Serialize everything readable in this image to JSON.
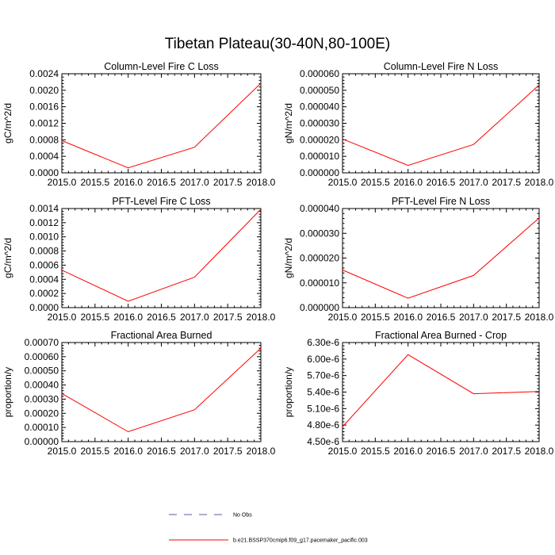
{
  "figure_title": "Tibetan Plateau(30-40N,80-100E)",
  "legend": {
    "entries": [
      {
        "label": "No Obs",
        "style": "dashed",
        "color": "#5a5aa0"
      },
      {
        "label": "b.e21.BSSP370cmip6.f09_g17.pacemaker_pacific.003",
        "style": "solid",
        "color": "#ff0000"
      }
    ]
  },
  "series_color": "#ff0000",
  "chart_data": [
    {
      "type": "line",
      "title": "Column-Level Fire C Loss",
      "ylabel": "gC/m^2/d",
      "xlim": [
        2015.0,
        2018.0
      ],
      "ylim": [
        0.0,
        0.0024
      ],
      "xticks": [
        "2015.0",
        "2015.5",
        "2016.0",
        "2016.5",
        "2017.0",
        "2017.5",
        "2018.0"
      ],
      "yticks": [
        {
          "value": 0.0,
          "label": "0.0000"
        },
        {
          "value": 0.0004,
          "label": "0.0004"
        },
        {
          "value": 0.0008,
          "label": "0.0008"
        },
        {
          "value": 0.0012,
          "label": "0.0012"
        },
        {
          "value": 0.0016,
          "label": "0.0016"
        },
        {
          "value": 0.002,
          "label": "0.0020"
        },
        {
          "value": 0.0024,
          "label": "0.0024"
        }
      ],
      "series": [
        {
          "name": "b.e21.BSSP370cmip6.f09_g17.pacemaker_pacific.003",
          "x": [
            2015,
            2016,
            2017,
            2018
          ],
          "values": [
            0.00078,
            0.00012,
            0.00062,
            0.00217
          ]
        }
      ]
    },
    {
      "type": "line",
      "title": "Column-Level Fire N Loss",
      "ylabel": "gN/m^2/d",
      "xlim": [
        2015.0,
        2018.0
      ],
      "ylim": [
        0.0,
        6e-05
      ],
      "xticks": [
        "2015.0",
        "2015.5",
        "2016.0",
        "2016.5",
        "2017.0",
        "2017.5",
        "2018.0"
      ],
      "yticks": [
        {
          "value": 0.0,
          "label": "0.000000"
        },
        {
          "value": 1e-05,
          "label": "0.000010"
        },
        {
          "value": 2e-05,
          "label": "0.000020"
        },
        {
          "value": 3e-05,
          "label": "0.000030"
        },
        {
          "value": 4e-05,
          "label": "0.000040"
        },
        {
          "value": 5e-05,
          "label": "0.000050"
        },
        {
          "value": 6e-05,
          "label": "0.000060"
        }
      ],
      "series": [
        {
          "name": "b.e21.BSSP370cmip6.f09_g17.pacemaker_pacific.003",
          "x": [
            2015,
            2016,
            2017,
            2018
          ],
          "values": [
            2.05e-05,
            4.5e-06,
            1.72e-05,
            5.32e-05
          ]
        }
      ]
    },
    {
      "type": "line",
      "title": "PFT-Level Fire C Loss",
      "ylabel": "gC/m^2/d",
      "xlim": [
        2015.0,
        2018.0
      ],
      "ylim": [
        0.0,
        0.0014
      ],
      "xticks": [
        "2015.0",
        "2015.5",
        "2016.0",
        "2016.5",
        "2017.0",
        "2017.5",
        "2018.0"
      ],
      "yticks": [
        {
          "value": 0.0,
          "label": "0.0000"
        },
        {
          "value": 0.0002,
          "label": "0.0002"
        },
        {
          "value": 0.0004,
          "label": "0.0004"
        },
        {
          "value": 0.0006,
          "label": "0.0006"
        },
        {
          "value": 0.0008,
          "label": "0.0008"
        },
        {
          "value": 0.001,
          "label": "0.0010"
        },
        {
          "value": 0.0012,
          "label": "0.0012"
        },
        {
          "value": 0.0014,
          "label": "0.0014"
        }
      ],
      "series": [
        {
          "name": "b.e21.BSSP370cmip6.f09_g17.pacemaker_pacific.003",
          "x": [
            2015,
            2016,
            2017,
            2018
          ],
          "values": [
            0.00053,
            9e-05,
            0.00043,
            0.00139
          ]
        }
      ]
    },
    {
      "type": "line",
      "title": "PFT-Level Fire N Loss",
      "ylabel": "gN/m^2/d",
      "xlim": [
        2015.0,
        2018.0
      ],
      "ylim": [
        0.0,
        4e-05
      ],
      "xticks": [
        "2015.0",
        "2015.5",
        "2016.0",
        "2016.5",
        "2017.0",
        "2017.5",
        "2018.0"
      ],
      "yticks": [
        {
          "value": 0.0,
          "label": "0.000000"
        },
        {
          "value": 1e-05,
          "label": "0.000010"
        },
        {
          "value": 2e-05,
          "label": "0.000020"
        },
        {
          "value": 3e-05,
          "label": "0.000030"
        },
        {
          "value": 4e-05,
          "label": "0.000040"
        }
      ],
      "series": [
        {
          "name": "b.e21.BSSP370cmip6.f09_g17.pacemaker_pacific.003",
          "x": [
            2015,
            2016,
            2017,
            2018
          ],
          "values": [
            1.52e-05,
            3.8e-06,
            1.3e-05,
            3.62e-05
          ]
        }
      ]
    },
    {
      "type": "line",
      "title": "Fractional Area Burned",
      "ylabel": "proportion/y",
      "xlim": [
        2015.0,
        2018.0
      ],
      "ylim": [
        0.0,
        0.0007
      ],
      "xticks": [
        "2015.0",
        "2015.5",
        "2016.0",
        "2016.5",
        "2017.0",
        "2017.5",
        "2018.0"
      ],
      "yticks": [
        {
          "value": 0.0,
          "label": "0.00000"
        },
        {
          "value": 0.0001,
          "label": "0.00010"
        },
        {
          "value": 0.0002,
          "label": "0.00020"
        },
        {
          "value": 0.0003,
          "label": "0.00030"
        },
        {
          "value": 0.0004,
          "label": "0.00040"
        },
        {
          "value": 0.0005,
          "label": "0.00050"
        },
        {
          "value": 0.0006,
          "label": "0.00060"
        },
        {
          "value": 0.0007,
          "label": "0.00070"
        }
      ],
      "series": [
        {
          "name": "b.e21.BSSP370cmip6.f09_g17.pacemaker_pacific.003",
          "x": [
            2015,
            2016,
            2017,
            2018
          ],
          "values": [
            0.00034,
            7e-05,
            0.000225,
            0.00066
          ]
        }
      ]
    },
    {
      "type": "line",
      "title": "Fractional Area Burned - Crop",
      "ylabel": "proportion/y",
      "xlim": [
        2015.0,
        2018.0
      ],
      "ylim": [
        4.5e-06,
        6.3e-06
      ],
      "xticks": [
        "2015.0",
        "2015.5",
        "2016.0",
        "2016.5",
        "2017.0",
        "2017.5",
        "2018.0"
      ],
      "yticks": [
        {
          "value": 4.5e-06,
          "label": "4.50e-6"
        },
        {
          "value": 4.8e-06,
          "label": "4.80e-6"
        },
        {
          "value": 5.1e-06,
          "label": "5.10e-6"
        },
        {
          "value": 5.4e-06,
          "label": "5.40e-6"
        },
        {
          "value": 5.7e-06,
          "label": "5.70e-6"
        },
        {
          "value": 6e-06,
          "label": "6.00e-6"
        },
        {
          "value": 6.3e-06,
          "label": "6.30e-6"
        }
      ],
      "series": [
        {
          "name": "b.e21.BSSP370cmip6.f09_g17.pacemaker_pacific.003",
          "x": [
            2015,
            2016,
            2017,
            2018
          ],
          "values": [
            4.77e-06,
            6.08e-06,
            5.37e-06,
            5.41e-06
          ]
        }
      ]
    }
  ]
}
